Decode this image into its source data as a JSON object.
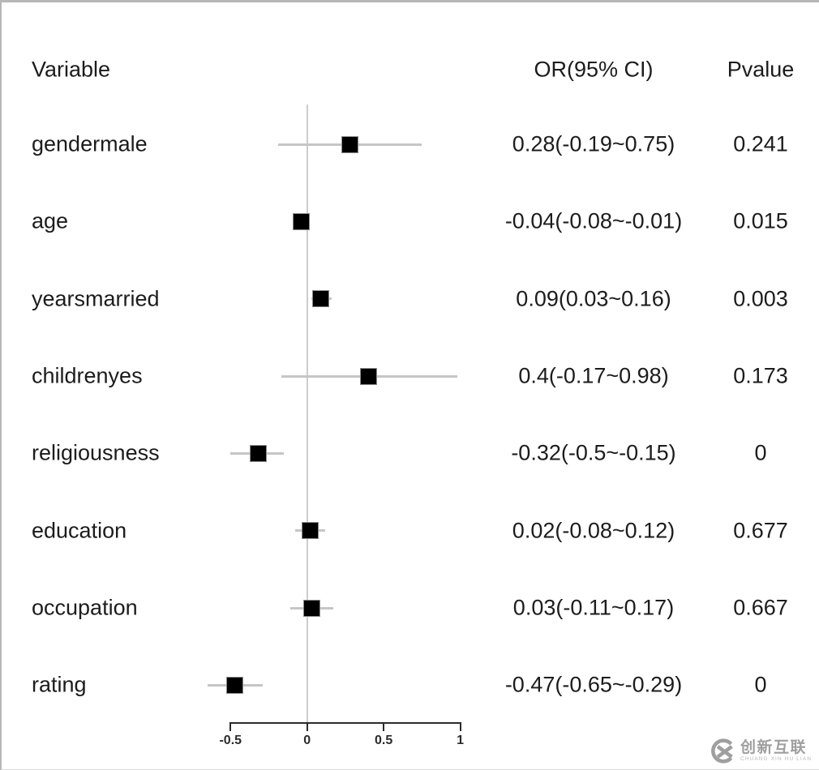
{
  "table": {
    "headers": {
      "variable": "Variable",
      "or_ci": "OR(95% CI)",
      "pvalue": "Pvalue"
    }
  },
  "chart_data": {
    "type": "scatter",
    "subtype": "forest-plot",
    "title": "",
    "xlabel": "",
    "ylabel": "",
    "legend": "none",
    "grid": "zero-reference-line-only",
    "marker_shape": "filled-square",
    "marker_color": "#000000",
    "ci_line_color": "#c6c6c6",
    "zero_line_value": 0,
    "axis": {
      "range": [
        -0.5,
        1
      ],
      "ticks": [
        {
          "value": -0.5,
          "label": "-0.5"
        },
        {
          "value": 0,
          "label": "0"
        },
        {
          "value": 0.5,
          "label": "0.5"
        },
        {
          "value": 1,
          "label": "1"
        }
      ]
    },
    "rows": [
      {
        "variable": "gendermale",
        "or": 0.28,
        "ci_low": -0.19,
        "ci_high": 0.75,
        "or_ci_text": "0.28(-0.19~0.75)",
        "pvalue_text": "0.241"
      },
      {
        "variable": "age",
        "or": -0.04,
        "ci_low": -0.08,
        "ci_high": -0.01,
        "or_ci_text": "-0.04(-0.08~-0.01)",
        "pvalue_text": "0.015"
      },
      {
        "variable": "yearsmarried",
        "or": 0.09,
        "ci_low": 0.03,
        "ci_high": 0.16,
        "or_ci_text": "0.09(0.03~0.16)",
        "pvalue_text": "0.003"
      },
      {
        "variable": "childrenyes",
        "or": 0.4,
        "ci_low": -0.17,
        "ci_high": 0.98,
        "or_ci_text": "0.4(-0.17~0.98)",
        "pvalue_text": "0.173"
      },
      {
        "variable": "religiousness",
        "or": -0.32,
        "ci_low": -0.5,
        "ci_high": -0.15,
        "or_ci_text": "-0.32(-0.5~-0.15)",
        "pvalue_text": "0"
      },
      {
        "variable": "education",
        "or": 0.02,
        "ci_low": -0.08,
        "ci_high": 0.12,
        "or_ci_text": "0.02(-0.08~0.12)",
        "pvalue_text": "0.677"
      },
      {
        "variable": "occupation",
        "or": 0.03,
        "ci_low": -0.11,
        "ci_high": 0.17,
        "or_ci_text": "0.03(-0.11~0.17)",
        "pvalue_text": "0.667"
      },
      {
        "variable": "rating",
        "or": -0.47,
        "ci_low": -0.65,
        "ci_high": -0.29,
        "or_ci_text": "-0.47(-0.65~-0.29)",
        "pvalue_text": "0"
      }
    ]
  },
  "watermark": {
    "logo": "cx-ring-x-logo",
    "title": "创新互联",
    "subtitle": "CHUANG XIN HU LIAN"
  }
}
